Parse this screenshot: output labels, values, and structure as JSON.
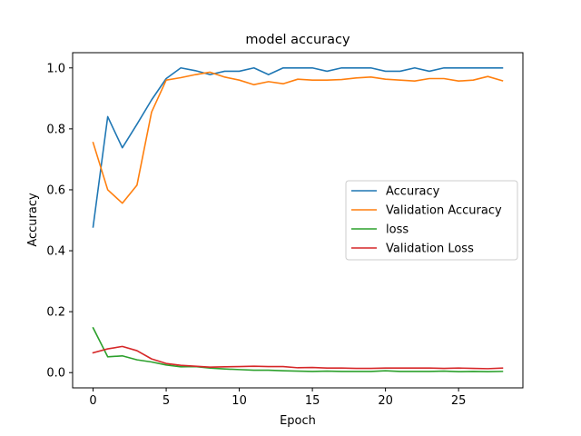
{
  "chart_data": {
    "type": "line",
    "title": "model accuracy",
    "xlabel": "Epoch",
    "ylabel": "Accuracy",
    "xlim": [
      -1.4,
      29.4
    ],
    "ylim": [
      -0.05,
      1.05
    ],
    "xticks": [
      0,
      5,
      10,
      15,
      20,
      25
    ],
    "xtick_labels": [
      "0",
      "5",
      "10",
      "15",
      "20",
      "25"
    ],
    "yticks": [
      0.0,
      0.2,
      0.4,
      0.6,
      0.8,
      1.0
    ],
    "ytick_labels": [
      "0.0",
      "0.2",
      "0.4",
      "0.6",
      "0.8",
      "1.0"
    ],
    "grid": false,
    "legend_position": "center-right",
    "x": [
      0,
      1,
      2,
      3,
      4,
      5,
      6,
      7,
      8,
      9,
      10,
      11,
      12,
      13,
      14,
      15,
      16,
      17,
      18,
      19,
      20,
      21,
      22,
      23,
      24,
      25,
      26,
      27,
      28
    ],
    "series": [
      {
        "name": "Accuracy",
        "color": "#1f77b4",
        "values": [
          0.478,
          0.84,
          0.738,
          0.815,
          0.895,
          0.965,
          1.0,
          0.991,
          0.978,
          0.989,
          0.989,
          1.0,
          0.978,
          1.0,
          1.0,
          1.0,
          0.989,
          1.0,
          1.0,
          1.0,
          0.989,
          0.989,
          1.0,
          0.989,
          1.0,
          1.0,
          1.0,
          1.0,
          1.0
        ]
      },
      {
        "name": "Validation Accuracy",
        "color": "#ff7f0e",
        "values": [
          0.755,
          0.6,
          0.556,
          0.615,
          0.855,
          0.96,
          0.968,
          0.978,
          0.986,
          0.97,
          0.96,
          0.945,
          0.955,
          0.948,
          0.963,
          0.96,
          0.96,
          0.962,
          0.967,
          0.97,
          0.963,
          0.96,
          0.957,
          0.965,
          0.965,
          0.957,
          0.96,
          0.972,
          0.958
        ]
      },
      {
        "name": "loss",
        "color": "#2ca02c",
        "values": [
          0.147,
          0.052,
          0.055,
          0.042,
          0.035,
          0.025,
          0.019,
          0.02,
          0.015,
          0.012,
          0.01,
          0.008,
          0.008,
          0.006,
          0.005,
          0.004,
          0.005,
          0.004,
          0.004,
          0.004,
          0.006,
          0.004,
          0.004,
          0.004,
          0.005,
          0.003,
          0.004,
          0.003,
          0.004
        ]
      },
      {
        "name": "Validation Loss",
        "color": "#d62728",
        "values": [
          0.065,
          0.078,
          0.086,
          0.072,
          0.045,
          0.03,
          0.024,
          0.021,
          0.018,
          0.019,
          0.02,
          0.021,
          0.02,
          0.02,
          0.016,
          0.017,
          0.015,
          0.015,
          0.014,
          0.014,
          0.015,
          0.015,
          0.015,
          0.015,
          0.014,
          0.015,
          0.014,
          0.013,
          0.015
        ]
      }
    ]
  }
}
